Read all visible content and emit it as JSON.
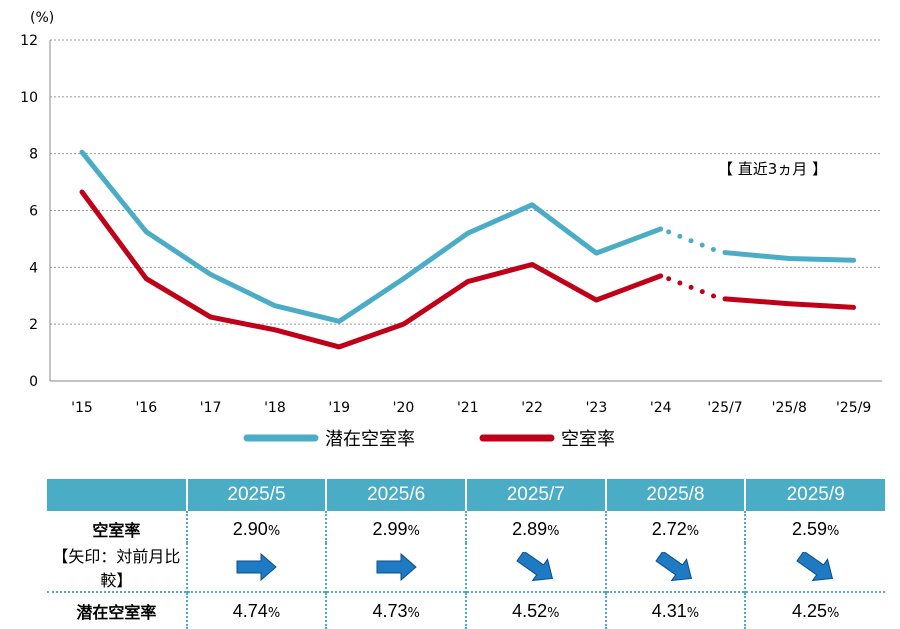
{
  "chart_data": {
    "type": "line",
    "ylabel_unit": "(%)",
    "ylim": [
      0,
      12
    ],
    "yticks": [
      "0",
      "2",
      "4",
      "6",
      "8",
      "10",
      "12"
    ],
    "categories": [
      "'15",
      "'16",
      "'17",
      "'18",
      "'19",
      "'20",
      "'21",
      "'22",
      "'23",
      "'24",
      "'25/7",
      "'25/8",
      "'25/9"
    ],
    "series": [
      {
        "name": "潜在空室率",
        "color": "#4bacc6",
        "values": [
          8.05,
          5.25,
          3.75,
          2.65,
          2.1,
          3.6,
          5.2,
          6.2,
          4.5,
          5.35,
          4.52,
          4.31,
          4.25
        ]
      },
      {
        "name": "空室率",
        "color": "#c00018",
        "values": [
          6.65,
          3.6,
          2.25,
          1.8,
          1.2,
          2.0,
          3.5,
          4.1,
          2.85,
          3.7,
          2.89,
          2.72,
          2.59
        ]
      }
    ],
    "annotation": "【 直近3ヵ月 】",
    "grid": true,
    "legend_position": "bottom"
  },
  "table": {
    "headers": [
      "2025/5",
      "2025/6",
      "2025/7",
      "2025/8",
      "2025/9"
    ],
    "vacancy_label": "空室率",
    "arrow_label": "【矢印：対前月比較】",
    "latent_label": "潜在空室率",
    "pct_unit": "%",
    "vacancy_values": [
      "2.90",
      "2.99",
      "2.89",
      "2.72",
      "2.59"
    ],
    "arrows": [
      "right-arrow-icon",
      "right-arrow-icon",
      "down-right-arrow-icon",
      "down-right-arrow-icon",
      "down-right-arrow-icon"
    ],
    "latent_values": [
      "4.74",
      "4.73",
      "4.52",
      "4.31",
      "4.25"
    ],
    "arrow_color": "#1f7ac4"
  }
}
